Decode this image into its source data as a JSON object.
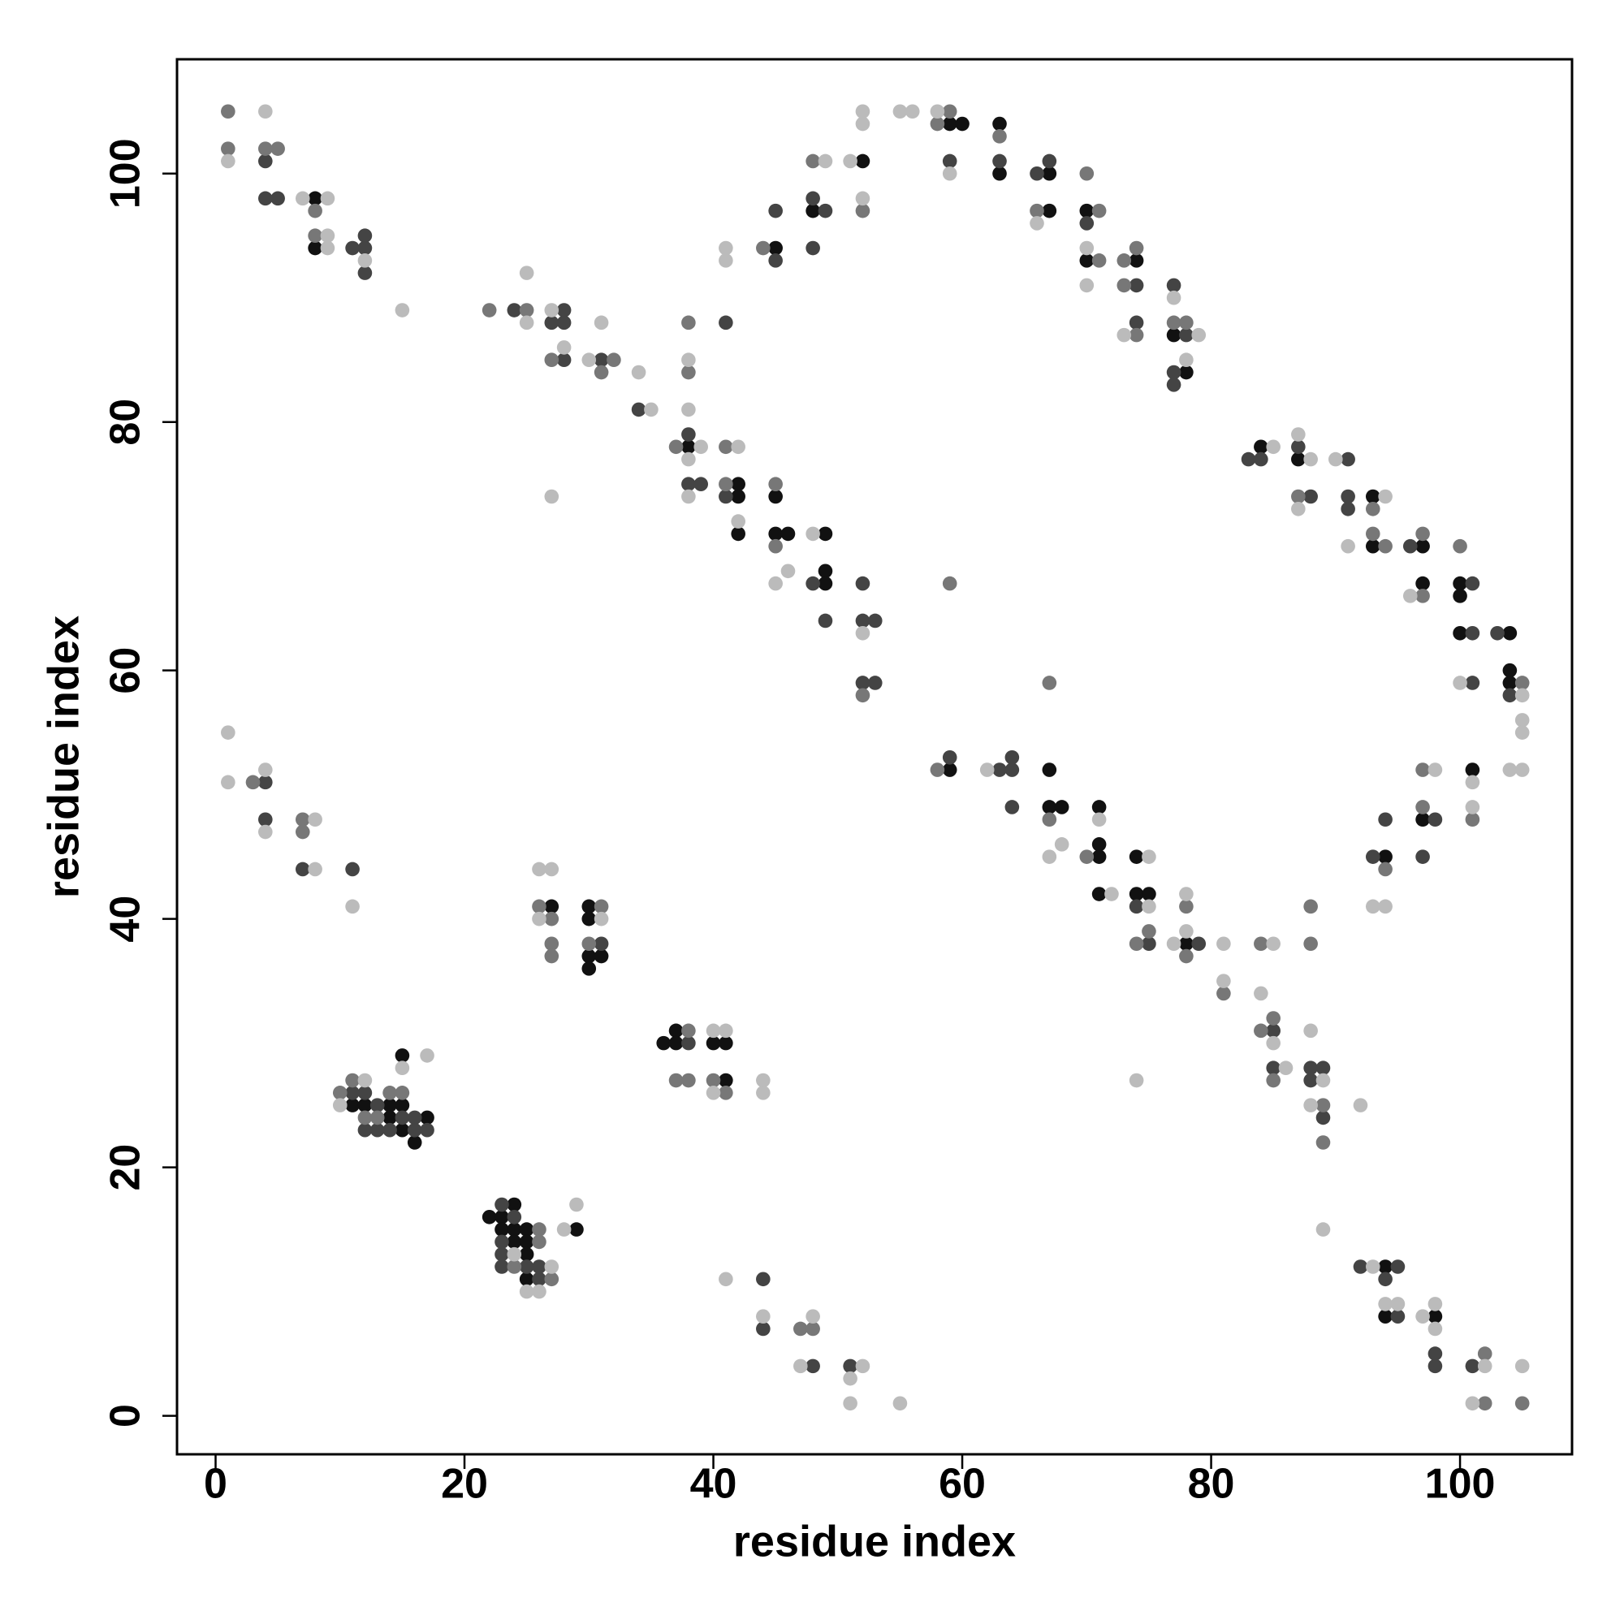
{
  "chart_data": {
    "type": "scatter",
    "xlabel": "residue index",
    "ylabel": "residue index",
    "xlim": [
      -3.1,
      109
    ],
    "ylim": [
      -3.1,
      109.2
    ],
    "xticks": [
      0,
      20,
      40,
      60,
      80,
      100
    ],
    "yticks": [
      0,
      20,
      40,
      60,
      80,
      100
    ],
    "series": [
      {
        "color": "#111111",
        "x": [
          8,
          8,
          38,
          42,
          42,
          42,
          45,
          48,
          52,
          45,
          45,
          46,
          49,
          49,
          49,
          59,
          60,
          63,
          63,
          67,
          67,
          70,
          70,
          74,
          77,
          78,
          84,
          87,
          93,
          93,
          97,
          97,
          100,
          100,
          100,
          104,
          104,
          104,
          27,
          30,
          30,
          30,
          31,
          30,
          59,
          67,
          67,
          68,
          71,
          71,
          71,
          71,
          74,
          74,
          75,
          78,
          94,
          97,
          101,
          11,
          12,
          14,
          15,
          14,
          15,
          16,
          17,
          15,
          22,
          24,
          23,
          23,
          24,
          24,
          25,
          25,
          25,
          25,
          29,
          36,
          37,
          37,
          40,
          41,
          41,
          94,
          94,
          98
        ],
        "values": [
          98,
          94,
          78,
          75,
          74,
          71,
          94,
          97,
          101,
          74,
          71,
          71,
          71,
          68,
          67,
          104,
          104,
          104,
          100,
          100,
          97,
          97,
          93,
          93,
          87,
          84,
          78,
          77,
          74,
          70,
          70,
          67,
          67,
          66,
          63,
          63,
          60,
          59,
          41,
          41,
          40,
          37,
          37,
          36,
          52,
          52,
          49,
          49,
          49,
          46,
          45,
          42,
          45,
          42,
          42,
          38,
          45,
          48,
          52,
          25,
          25,
          25,
          25,
          24,
          23,
          22,
          24,
          29,
          16,
          17,
          16,
          15,
          15,
          14,
          15,
          14,
          13,
          11,
          15,
          30,
          31,
          30,
          30,
          30,
          27,
          12,
          8,
          8
        ]
      },
      {
        "color": "#444444",
        "x": [
          4,
          4,
          5,
          11,
          12,
          12,
          12,
          24,
          27,
          28,
          28,
          28,
          31,
          34,
          38,
          38,
          39,
          41,
          41,
          45,
          45,
          48,
          49,
          48,
          48,
          49,
          52,
          52,
          53,
          52,
          53,
          59,
          63,
          66,
          67,
          70,
          74,
          74,
          77,
          78,
          77,
          77,
          83,
          84,
          87,
          88,
          91,
          91,
          91,
          96,
          101,
          101,
          103,
          101,
          104,
          4,
          4,
          7,
          11,
          31,
          59,
          63,
          64,
          64,
          64,
          74,
          75,
          79,
          85,
          85,
          88,
          89,
          88,
          89,
          93,
          94,
          98,
          97,
          11,
          12,
          13,
          12,
          13,
          15,
          14,
          16,
          16,
          17,
          23,
          24,
          23,
          23,
          23,
          25,
          26,
          26,
          38,
          44,
          44,
          48,
          51,
          92,
          95,
          94,
          95,
          98,
          98,
          101
        ],
        "values": [
          101,
          98,
          98,
          94,
          95,
          94,
          92,
          89,
          88,
          89,
          88,
          85,
          85,
          81,
          79,
          75,
          75,
          88,
          74,
          93,
          97,
          98,
          97,
          94,
          67,
          64,
          67,
          64,
          64,
          59,
          59,
          101,
          101,
          100,
          101,
          96,
          91,
          88,
          91,
          87,
          84,
          83,
          77,
          77,
          78,
          74,
          77,
          74,
          73,
          70,
          67,
          63,
          63,
          59,
          58,
          51,
          48,
          44,
          44,
          38,
          53,
          52,
          53,
          52,
          49,
          41,
          38,
          38,
          31,
          28,
          28,
          28,
          27,
          24,
          45,
          48,
          48,
          45,
          26,
          26,
          25,
          23,
          23,
          24,
          23,
          24,
          23,
          23,
          17,
          16,
          14,
          13,
          12,
          12,
          12,
          11,
          30,
          11,
          7,
          4,
          4,
          12,
          12,
          11,
          8,
          5,
          4,
          4
        ]
      },
      {
        "color": "#777777",
        "x": [
          1,
          1,
          4,
          5,
          8,
          8,
          22,
          25,
          27,
          31,
          32,
          38,
          38,
          37,
          41,
          41,
          44,
          48,
          52,
          45,
          45,
          52,
          59,
          58,
          63,
          66,
          70,
          71,
          71,
          73,
          74,
          73,
          74,
          77,
          78,
          59,
          87,
          93,
          93,
          94,
          97,
          97,
          100,
          105,
          3,
          7,
          7,
          26,
          27,
          27,
          27,
          31,
          30,
          58,
          67,
          67,
          70,
          74,
          75,
          78,
          78,
          81,
          84,
          84,
          85,
          85,
          88,
          88,
          89,
          89,
          94,
          97,
          97,
          101,
          10,
          11,
          12,
          13,
          14,
          15,
          26,
          26,
          24,
          27,
          38,
          37,
          38,
          40,
          41,
          47,
          48,
          102,
          102,
          105
        ],
        "values": [
          105,
          102,
          102,
          102,
          97,
          95,
          89,
          89,
          85,
          84,
          85,
          88,
          84,
          78,
          78,
          75,
          94,
          101,
          97,
          75,
          70,
          58,
          105,
          104,
          103,
          97,
          100,
          97,
          93,
          93,
          94,
          91,
          87,
          88,
          88,
          67,
          74,
          73,
          71,
          70,
          71,
          66,
          70,
          59,
          51,
          48,
          47,
          41,
          40,
          38,
          37,
          41,
          38,
          52,
          48,
          59,
          45,
          38,
          39,
          41,
          37,
          34,
          38,
          31,
          32,
          27,
          41,
          38,
          25,
          22,
          44,
          52,
          49,
          48,
          26,
          27,
          24,
          24,
          26,
          26,
          15,
          14,
          12,
          11,
          31,
          27,
          27,
          27,
          26,
          7,
          7,
          5,
          1,
          1
        ]
      },
      {
        "color": "#bbbbbb",
        "x": [
          1,
          4,
          7,
          9,
          9,
          9,
          12,
          15,
          25,
          25,
          27,
          28,
          30,
          31,
          34,
          35,
          38,
          38,
          38,
          39,
          38,
          41,
          41,
          42,
          42,
          27,
          49,
          51,
          52,
          52,
          52,
          45,
          46,
          48,
          52,
          55,
          56,
          58,
          59,
          66,
          70,
          70,
          73,
          77,
          79,
          78,
          85,
          87,
          88,
          87,
          90,
          91,
          94,
          96,
          100,
          105,
          105,
          105,
          104,
          105,
          1,
          1,
          4,
          4,
          8,
          8,
          11,
          26,
          27,
          26,
          31,
          62,
          67,
          68,
          71,
          72,
          75,
          75,
          77,
          78,
          78,
          81,
          81,
          85,
          84,
          85,
          86,
          88,
          89,
          88,
          89,
          92,
          74,
          93,
          94,
          98,
          101,
          101,
          10,
          12,
          15,
          17,
          24,
          27,
          25,
          26,
          28,
          29,
          40,
          41,
          40,
          44,
          44,
          41,
          44,
          48,
          47,
          52,
          51,
          51,
          55,
          93,
          94,
          95,
          97,
          98,
          98,
          102,
          101,
          105
        ],
        "values": [
          101,
          105,
          98,
          98,
          95,
          94,
          93,
          89,
          92,
          88,
          89,
          86,
          85,
          88,
          84,
          81,
          85,
          81,
          77,
          78,
          74,
          94,
          93,
          78,
          72,
          74,
          101,
          101,
          105,
          104,
          98,
          67,
          68,
          71,
          63,
          105,
          105,
          105,
          100,
          96,
          94,
          91,
          87,
          90,
          87,
          85,
          78,
          79,
          77,
          73,
          77,
          70,
          74,
          66,
          59,
          58,
          56,
          55,
          52,
          52,
          55,
          51,
          52,
          47,
          48,
          44,
          41,
          44,
          44,
          40,
          40,
          52,
          45,
          46,
          48,
          42,
          45,
          41,
          38,
          42,
          39,
          38,
          35,
          38,
          34,
          30,
          28,
          31,
          27,
          25,
          15,
          25,
          27,
          41,
          41,
          52,
          51,
          49,
          25,
          27,
          28,
          29,
          13,
          12,
          10,
          10,
          15,
          17,
          31,
          31,
          26,
          27,
          26,
          11,
          8,
          8,
          4,
          4,
          3,
          1,
          1,
          12,
          9,
          9,
          8,
          9,
          7,
          4,
          1,
          4
        ]
      }
    ]
  }
}
